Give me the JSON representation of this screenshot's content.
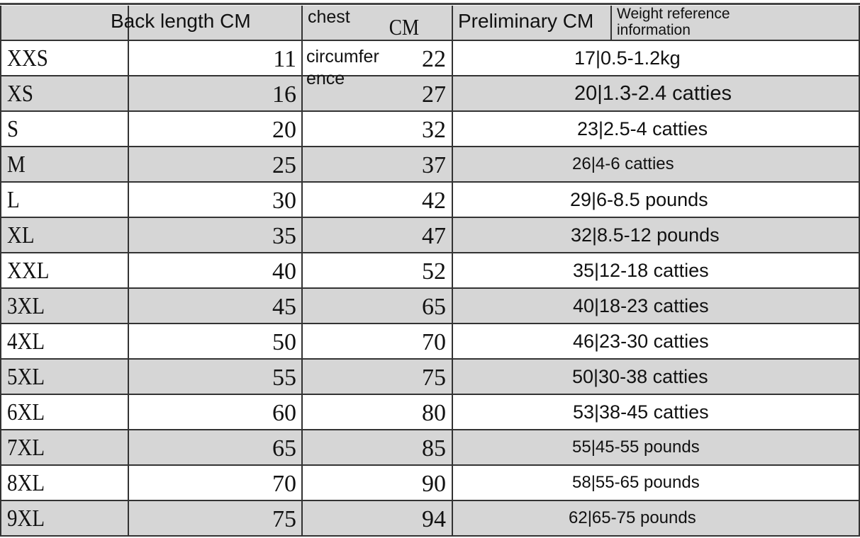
{
  "header": {
    "back_length": "Back length CM",
    "chest_line1": "chest",
    "chest_line2": "circumfer",
    "chest_line3": "ence",
    "chest_unit": "CM",
    "preliminary": "Preliminary CM",
    "weight_line1": "Weight reference",
    "weight_line2": "information"
  },
  "colors": {
    "row_gray": "#d6d6d6",
    "row_white": "#ffffff",
    "grid": "#333333"
  },
  "rows": [
    {
      "size": "XXS",
      "back": "11",
      "chest": "22",
      "weight": "17|0.5-1.2kg"
    },
    {
      "size": "XS",
      "back": "16",
      "chest": "27",
      "weight": "20|1.3-2.4 catties"
    },
    {
      "size": "S",
      "back": "20",
      "chest": "32",
      "weight": "23|2.5-4 catties"
    },
    {
      "size": "M",
      "back": "25",
      "chest": "37",
      "weight": "26|4-6 catties"
    },
    {
      "size": "L",
      "back": "30",
      "chest": "42",
      "weight": "29|6-8.5 pounds"
    },
    {
      "size": "XL",
      "back": "35",
      "chest": "47",
      "weight": "32|8.5-12 pounds"
    },
    {
      "size": "XXL",
      "back": "40",
      "chest": "52",
      "weight": "35|12-18 catties"
    },
    {
      "size": "3XL",
      "back": "45",
      "chest": "65",
      "weight": "40|18-23 catties"
    },
    {
      "size": "4XL",
      "back": "50",
      "chest": "70",
      "weight": "46|23-30 catties"
    },
    {
      "size": "5XL",
      "back": "55",
      "chest": "75",
      "weight": "50|30-38 catties"
    },
    {
      "size": "6XL",
      "back": "60",
      "chest": "80",
      "weight": "53|38-45 catties"
    },
    {
      "size": "7XL",
      "back": "65",
      "chest": "85",
      "weight": "55|45-55 pounds"
    },
    {
      "size": "8XL",
      "back": "70",
      "chest": "90",
      "weight": "58|55-65 pounds"
    },
    {
      "size": "9XL",
      "back": "75",
      "chest": "94",
      "weight": "62|65-75 pounds"
    }
  ]
}
